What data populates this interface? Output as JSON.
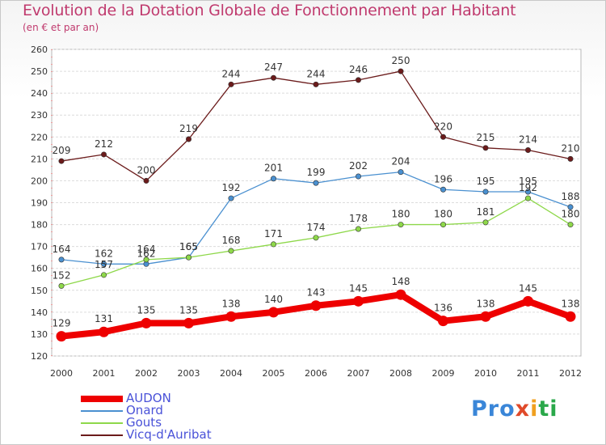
{
  "title": "Evolution de la Dotation Globale de Fonctionnement par Habitant",
  "subtitle": "(en € et par an)",
  "logo": {
    "p1": "Pro",
    "p2": "x",
    "p3": "i",
    "p4": "ti"
  },
  "chart_data": {
    "type": "line",
    "title": "Evolution de la Dotation Globale de Fonctionnement par Habitant",
    "subtitle": "(en € et par an)",
    "xlabel": "",
    "ylabel": "",
    "ylim": [
      120,
      260
    ],
    "yticks": [
      120,
      130,
      140,
      150,
      160,
      170,
      180,
      190,
      200,
      210,
      220,
      230,
      240,
      250,
      260
    ],
    "categories": [
      "2000",
      "2001",
      "2002",
      "2003",
      "2004",
      "2005",
      "2006",
      "2007",
      "2008",
      "2009",
      "2010",
      "2011",
      "2012"
    ],
    "grid": "horizontal",
    "legend_position": "bottom-left",
    "series": [
      {
        "name": "Vicq-d'Auribat",
        "color": "#6b1b1b",
        "values": [
          209,
          212,
          200,
          219,
          244,
          247,
          244,
          246,
          250,
          220,
          215,
          214,
          210
        ]
      },
      {
        "name": "Onard",
        "color": "#4a90d0",
        "values": [
          164,
          162,
          162,
          165,
          192,
          201,
          199,
          202,
          204,
          196,
          195,
          195,
          188
        ]
      },
      {
        "name": "Gouts",
        "color": "#8ed84a",
        "values": [
          152,
          157,
          164,
          165,
          168,
          171,
          174,
          178,
          180,
          180,
          181,
          192,
          180
        ]
      },
      {
        "name": "AUDON",
        "color": "#ee0000",
        "values": [
          129,
          131,
          135,
          135,
          138,
          140,
          143,
          145,
          148,
          136,
          138,
          145,
          138
        ]
      }
    ]
  }
}
